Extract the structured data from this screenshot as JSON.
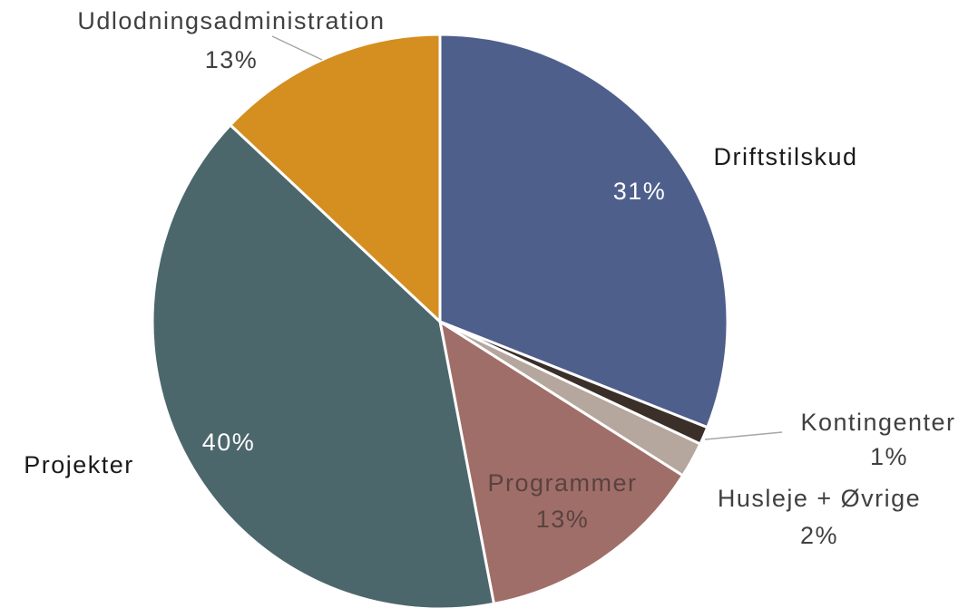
{
  "chart_data": {
    "type": "pie",
    "categories": [
      "Driftstilskud",
      "Kontingenter",
      "Husleje + Øvrige",
      "Programmer",
      "Projekter",
      "Udlodningsadministration"
    ],
    "values": [
      31,
      1,
      2,
      13,
      40,
      13
    ],
    "value_labels": [
      "31%",
      "1%",
      "2%",
      "13%",
      "40%",
      "13%"
    ],
    "colors": [
      "#4f5f8c",
      "#3b2f2a",
      "#b5a69e",
      "#a06e68",
      "#4c676c",
      "#d48f20"
    ]
  }
}
